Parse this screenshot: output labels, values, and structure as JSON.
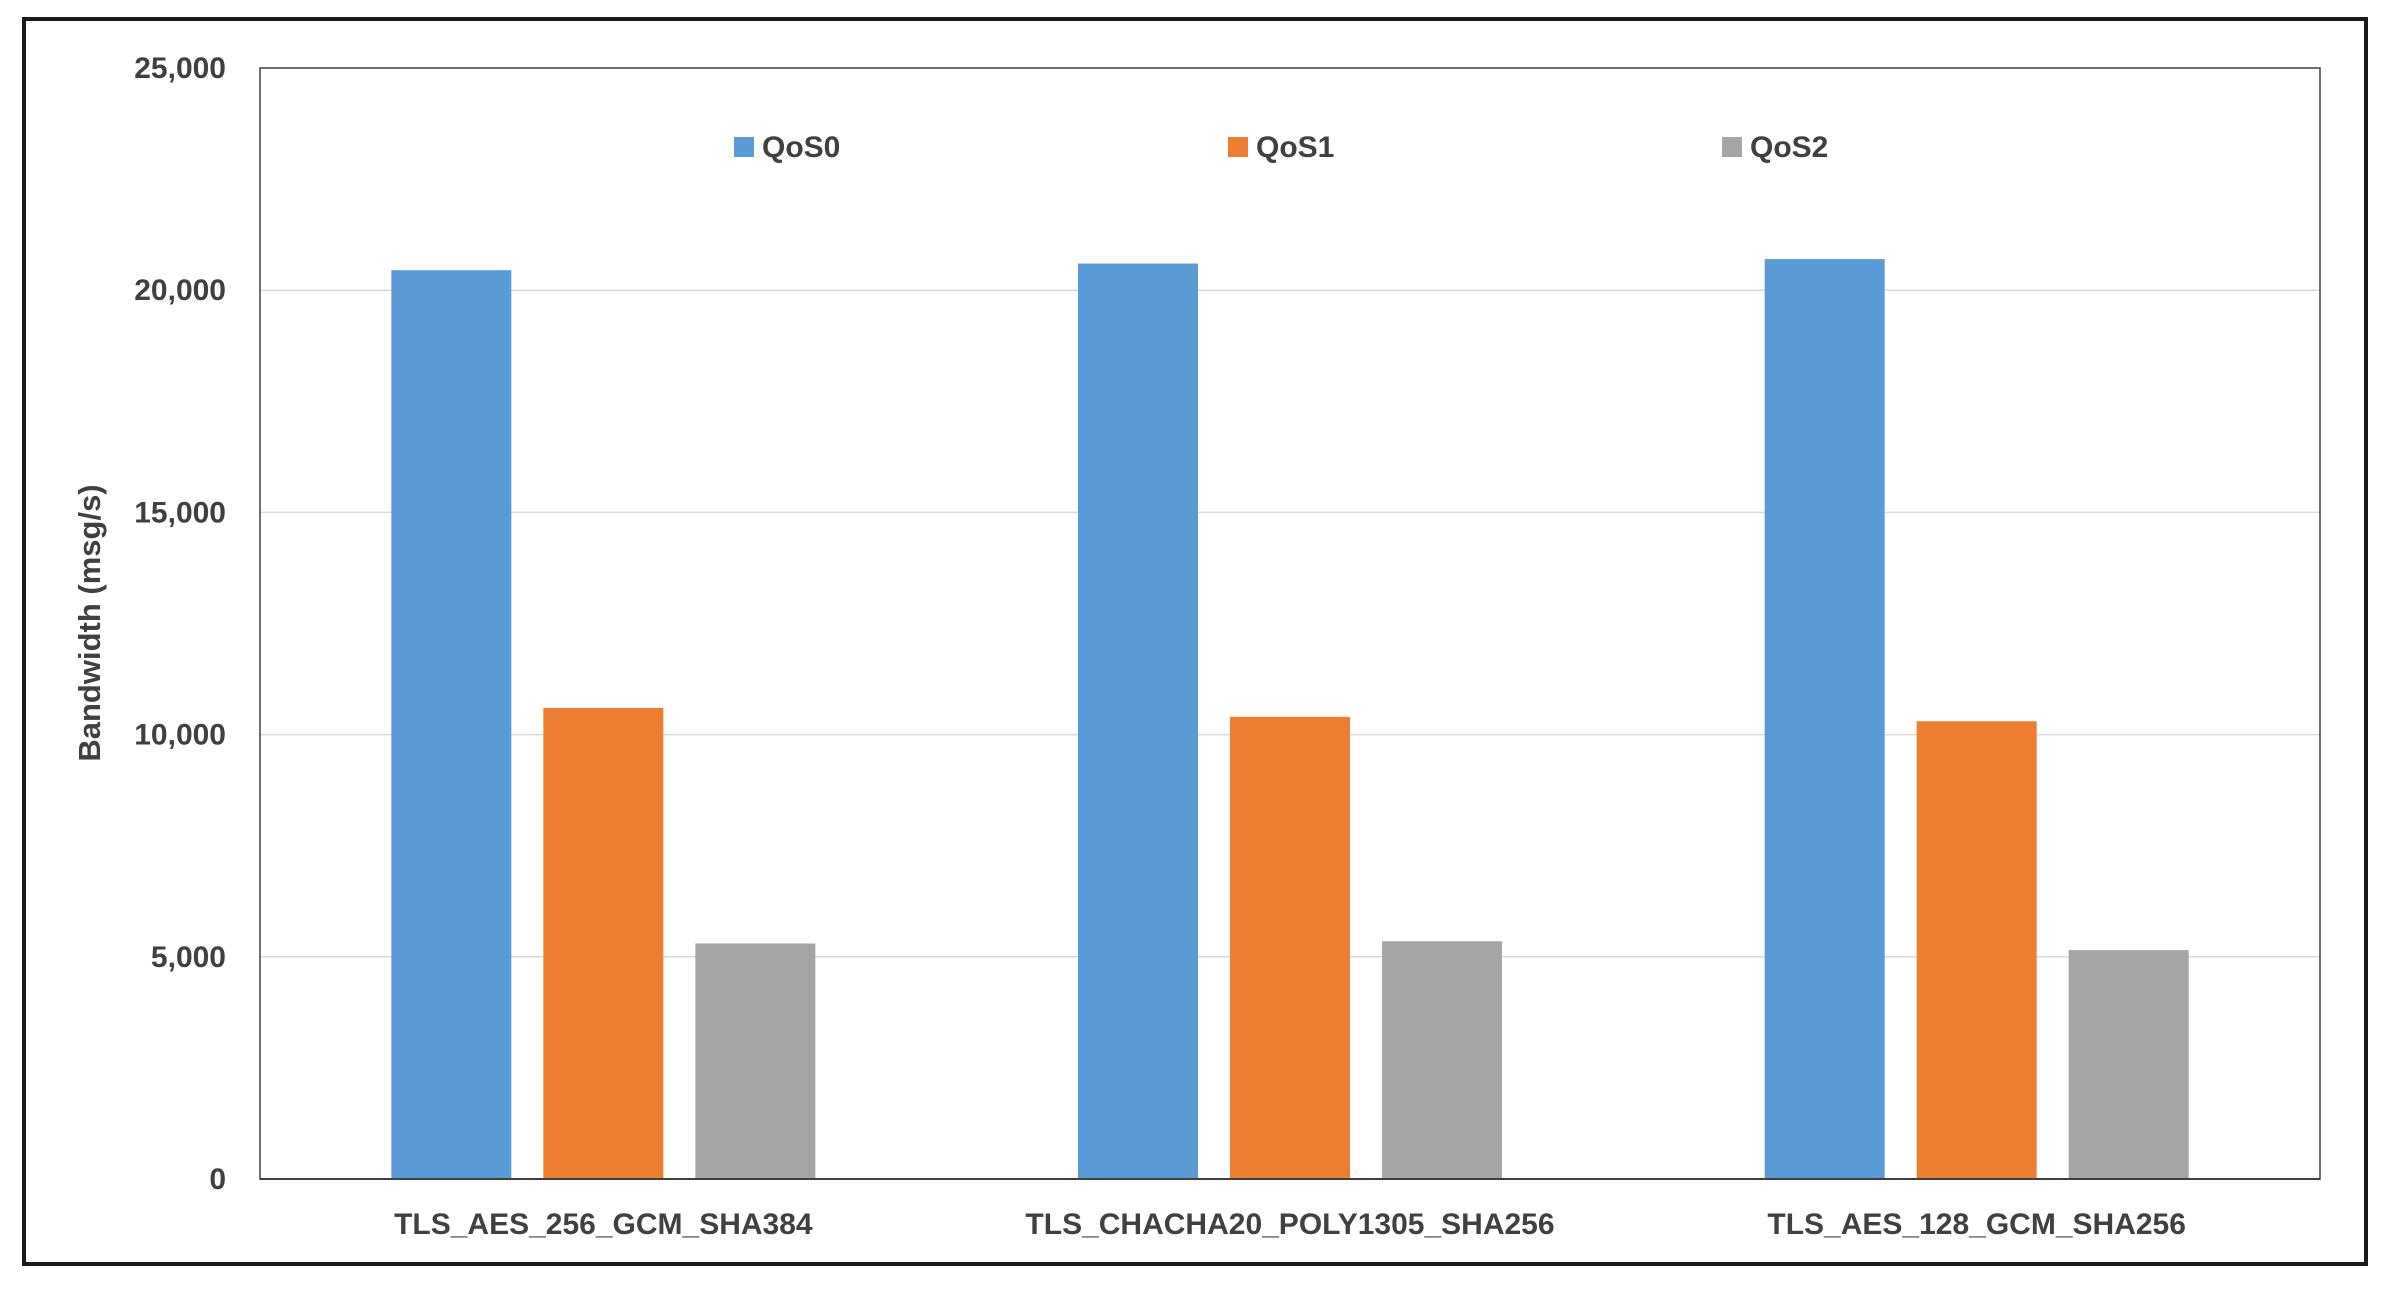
{
  "chart_data": {
    "type": "bar",
    "title": "",
    "xlabel": "",
    "ylabel": "Bandwidth (msg/s)",
    "ylim": [
      0,
      25000
    ],
    "yticks": [
      0,
      5000,
      10000,
      15000,
      20000,
      25000
    ],
    "ytick_labels": [
      "0",
      "5,000",
      "10,000",
      "15,000",
      "20,000",
      "25,000"
    ],
    "categories": [
      "TLS_AES_256_GCM_SHA384",
      "TLS_CHACHA20_POLY1305_SHA256",
      "TLS_AES_128_GCM_SHA256"
    ],
    "series": [
      {
        "name": "QoS0",
        "color": "#5b9bd5",
        "values": [
          20450,
          20600,
          20700
        ]
      },
      {
        "name": "QoS1",
        "color": "#ed7d31",
        "values": [
          10600,
          10400,
          10300
        ]
      },
      {
        "name": "QoS2",
        "color": "#a5a5a5",
        "values": [
          5300,
          5350,
          5150
        ]
      }
    ],
    "grid": true,
    "legend_position": "top"
  }
}
